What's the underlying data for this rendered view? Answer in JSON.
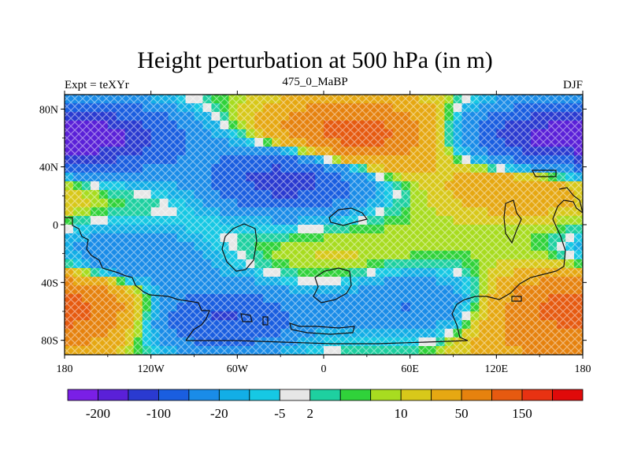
{
  "titles": {
    "main": "Height perturbation at 500 hPa (in m)",
    "left": "Expt = teXYr",
    "center": "475_0_MaBP",
    "right": "DJF"
  },
  "axes": {
    "x_ticks": [
      "180",
      "120W",
      "60W",
      "0",
      "60E",
      "120E",
      "180"
    ],
    "y_ticks": [
      "80N",
      "40N",
      "0",
      "40S",
      "80S"
    ],
    "x_range": [
      -180,
      180
    ],
    "y_range": [
      -90,
      90
    ]
  },
  "colorbar": {
    "colors": [
      "#7a1fe6",
      "#5a20d8",
      "#2a3ad0",
      "#1a5ee0",
      "#1a8ce8",
      "#12aee6",
      "#16c8e4",
      "#e6e6e6",
      "#1ed0a0",
      "#30d23a",
      "#a8dc20",
      "#d8c81a",
      "#e6a812",
      "#e6820e",
      "#e65a10",
      "#e83212",
      "#e00a0a"
    ],
    "labels": [
      "-200",
      "-100",
      "-20",
      "-5",
      "2",
      "10",
      "50",
      "150"
    ]
  },
  "field_anomalies": [
    {
      "lon": -150,
      "lat": 60,
      "value": -140
    },
    {
      "lon": 20,
      "lat": 62,
      "value": 130
    },
    {
      "lon": 150,
      "lat": 60,
      "value": -140
    },
    {
      "lon": -25,
      "lat": 32,
      "value": -140
    },
    {
      "lon": 140,
      "lat": 32,
      "value": 50
    },
    {
      "lon": -135,
      "lat": -25,
      "value": -60
    },
    {
      "lon": -170,
      "lat": -55,
      "value": 70
    },
    {
      "lon": -70,
      "lat": -65,
      "value": -110
    },
    {
      "lon": 60,
      "lat": -55,
      "value": -60
    },
    {
      "lon": 165,
      "lat": -55,
      "value": 50
    },
    {
      "lon": 150,
      "lat": -82,
      "value": 40
    },
    {
      "lon": 20,
      "lat": -30,
      "value": 10
    }
  ]
}
